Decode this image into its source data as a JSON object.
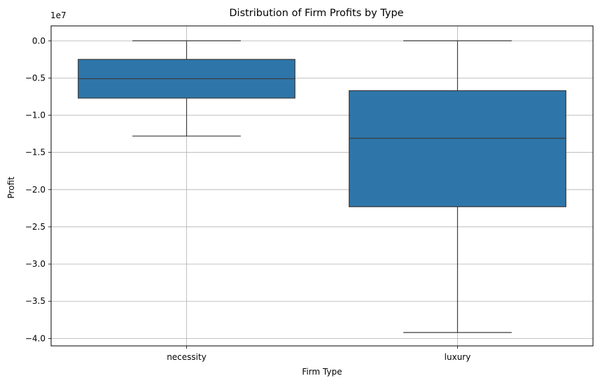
{
  "chart_data": {
    "type": "box",
    "title": "Distribution of Firm Profits by Type",
    "xlabel": "Firm Type",
    "ylabel": "Profit",
    "y_offset_label": "1e7",
    "y_scale_factor": 10000000,
    "ylim": [
      -41000000,
      2000000
    ],
    "yticks": [
      0,
      -5000000,
      -10000000,
      -15000000,
      -20000000,
      -25000000,
      -30000000,
      -35000000,
      -40000000
    ],
    "ytick_labels": [
      "0.0",
      "−0.5",
      "−1.0",
      "−1.5",
      "−2.0",
      "−2.5",
      "−3.0",
      "−3.5",
      "−4.0"
    ],
    "grid": true,
    "box_color": "#2e75a9",
    "categories": [
      "necessity",
      "luxury"
    ],
    "boxes": [
      {
        "category": "necessity",
        "whisker_low": -12800000,
        "q1": -7700000,
        "median": -5100000,
        "q3": -2500000,
        "whisker_high": 0
      },
      {
        "category": "luxury",
        "whisker_low": -39200000,
        "q1": -22300000,
        "median": -13100000,
        "q3": -6700000,
        "whisker_high": 0
      }
    ]
  }
}
